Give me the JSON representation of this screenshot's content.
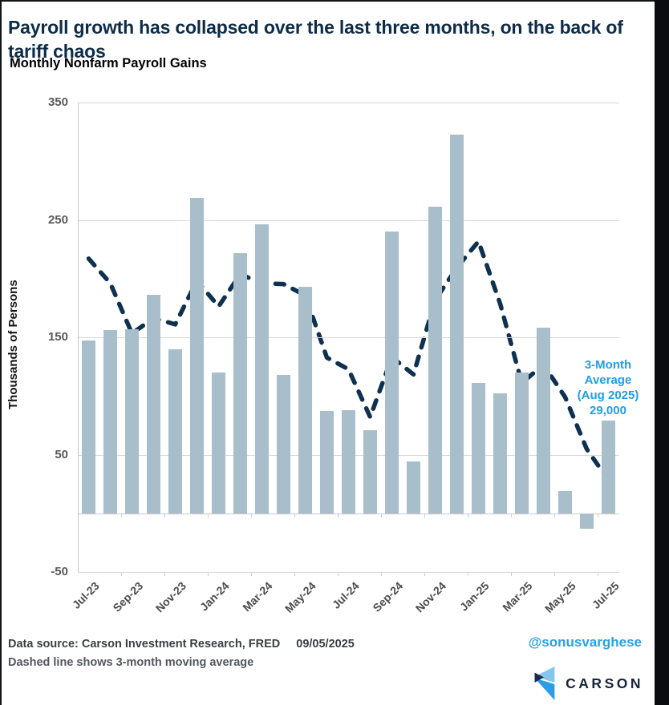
{
  "page": {
    "title": "Payroll growth has collapsed over the last three months, on the back of tariff chaos",
    "subtitle": "Monthly Nonfarm Payroll Gains"
  },
  "chart_data": {
    "type": "bar",
    "title": "Monthly Nonfarm Payroll Gains",
    "xlabel": "",
    "ylabel": "Thousands of Persons",
    "ylim": [
      -50,
      350
    ],
    "yticks": [
      350,
      250,
      150,
      50,
      -50
    ],
    "grid": true,
    "legend_position": "none",
    "categories": [
      "Jul-23",
      "Aug-23",
      "Sep-23",
      "Oct-23",
      "Nov-23",
      "Dec-23",
      "Jan-24",
      "Feb-24",
      "Mar-24",
      "Apr-24",
      "May-24",
      "Jun-24",
      "Jul-24",
      "Aug-24",
      "Sep-24",
      "Oct-24",
      "Nov-24",
      "Dec-24",
      "Jan-25",
      "Feb-25",
      "Mar-25",
      "Apr-25",
      "May-25",
      "Jun-25",
      "Jul-25"
    ],
    "x_tick_labels": [
      "Jul-23",
      "Sep-23",
      "Nov-23",
      "Jan-24",
      "Mar-24",
      "May-24",
      "Jul-24",
      "Sep-24",
      "Nov-24",
      "Jan-25",
      "Mar-25",
      "May-25",
      "Jul-25"
    ],
    "x_tick_every": 2,
    "series": [
      {
        "name": "Monthly nonfarm payroll gains (thousands)",
        "type": "bar",
        "color": "#a9becb",
        "values": [
          147,
          156,
          157,
          186,
          140,
          269,
          120,
          222,
          246,
          118,
          193,
          87,
          88,
          71,
          240,
          44,
          261,
          323,
          111,
          102,
          120,
          158,
          19,
          -13,
          79
        ]
      },
      {
        "name": "3-month moving average",
        "type": "dashed-line",
        "color": "#0f3150",
        "values": [
          217,
          196,
          153.3,
          166.3,
          161,
          198.3,
          176.3,
          203.7,
          196,
          195.3,
          185.7,
          132.7,
          122.7,
          82,
          133,
          118.3,
          181.7,
          209.3,
          231.7,
          178.7,
          111,
          126.7,
          99,
          54.7,
          28.3
        ]
      }
    ],
    "annotation": {
      "lines": [
        "3-Month Average",
        "(Aug 2025)",
        "29,000"
      ],
      "color": "#1f9de9"
    }
  },
  "footer": {
    "source": "Data source: Carson Investment Research, FRED",
    "date": "09/05/2025",
    "note": "Dashed line shows 3-month moving average",
    "handle": "@sonusvarghese",
    "logo_text": "CARSON"
  },
  "colors": {
    "title": "#0e2c48",
    "bar": "#a9becb",
    "dashed_line": "#0f3150",
    "accent_blue": "#1f9de9",
    "gridline": "#d8d8d8",
    "axis_text": "#595959"
  }
}
